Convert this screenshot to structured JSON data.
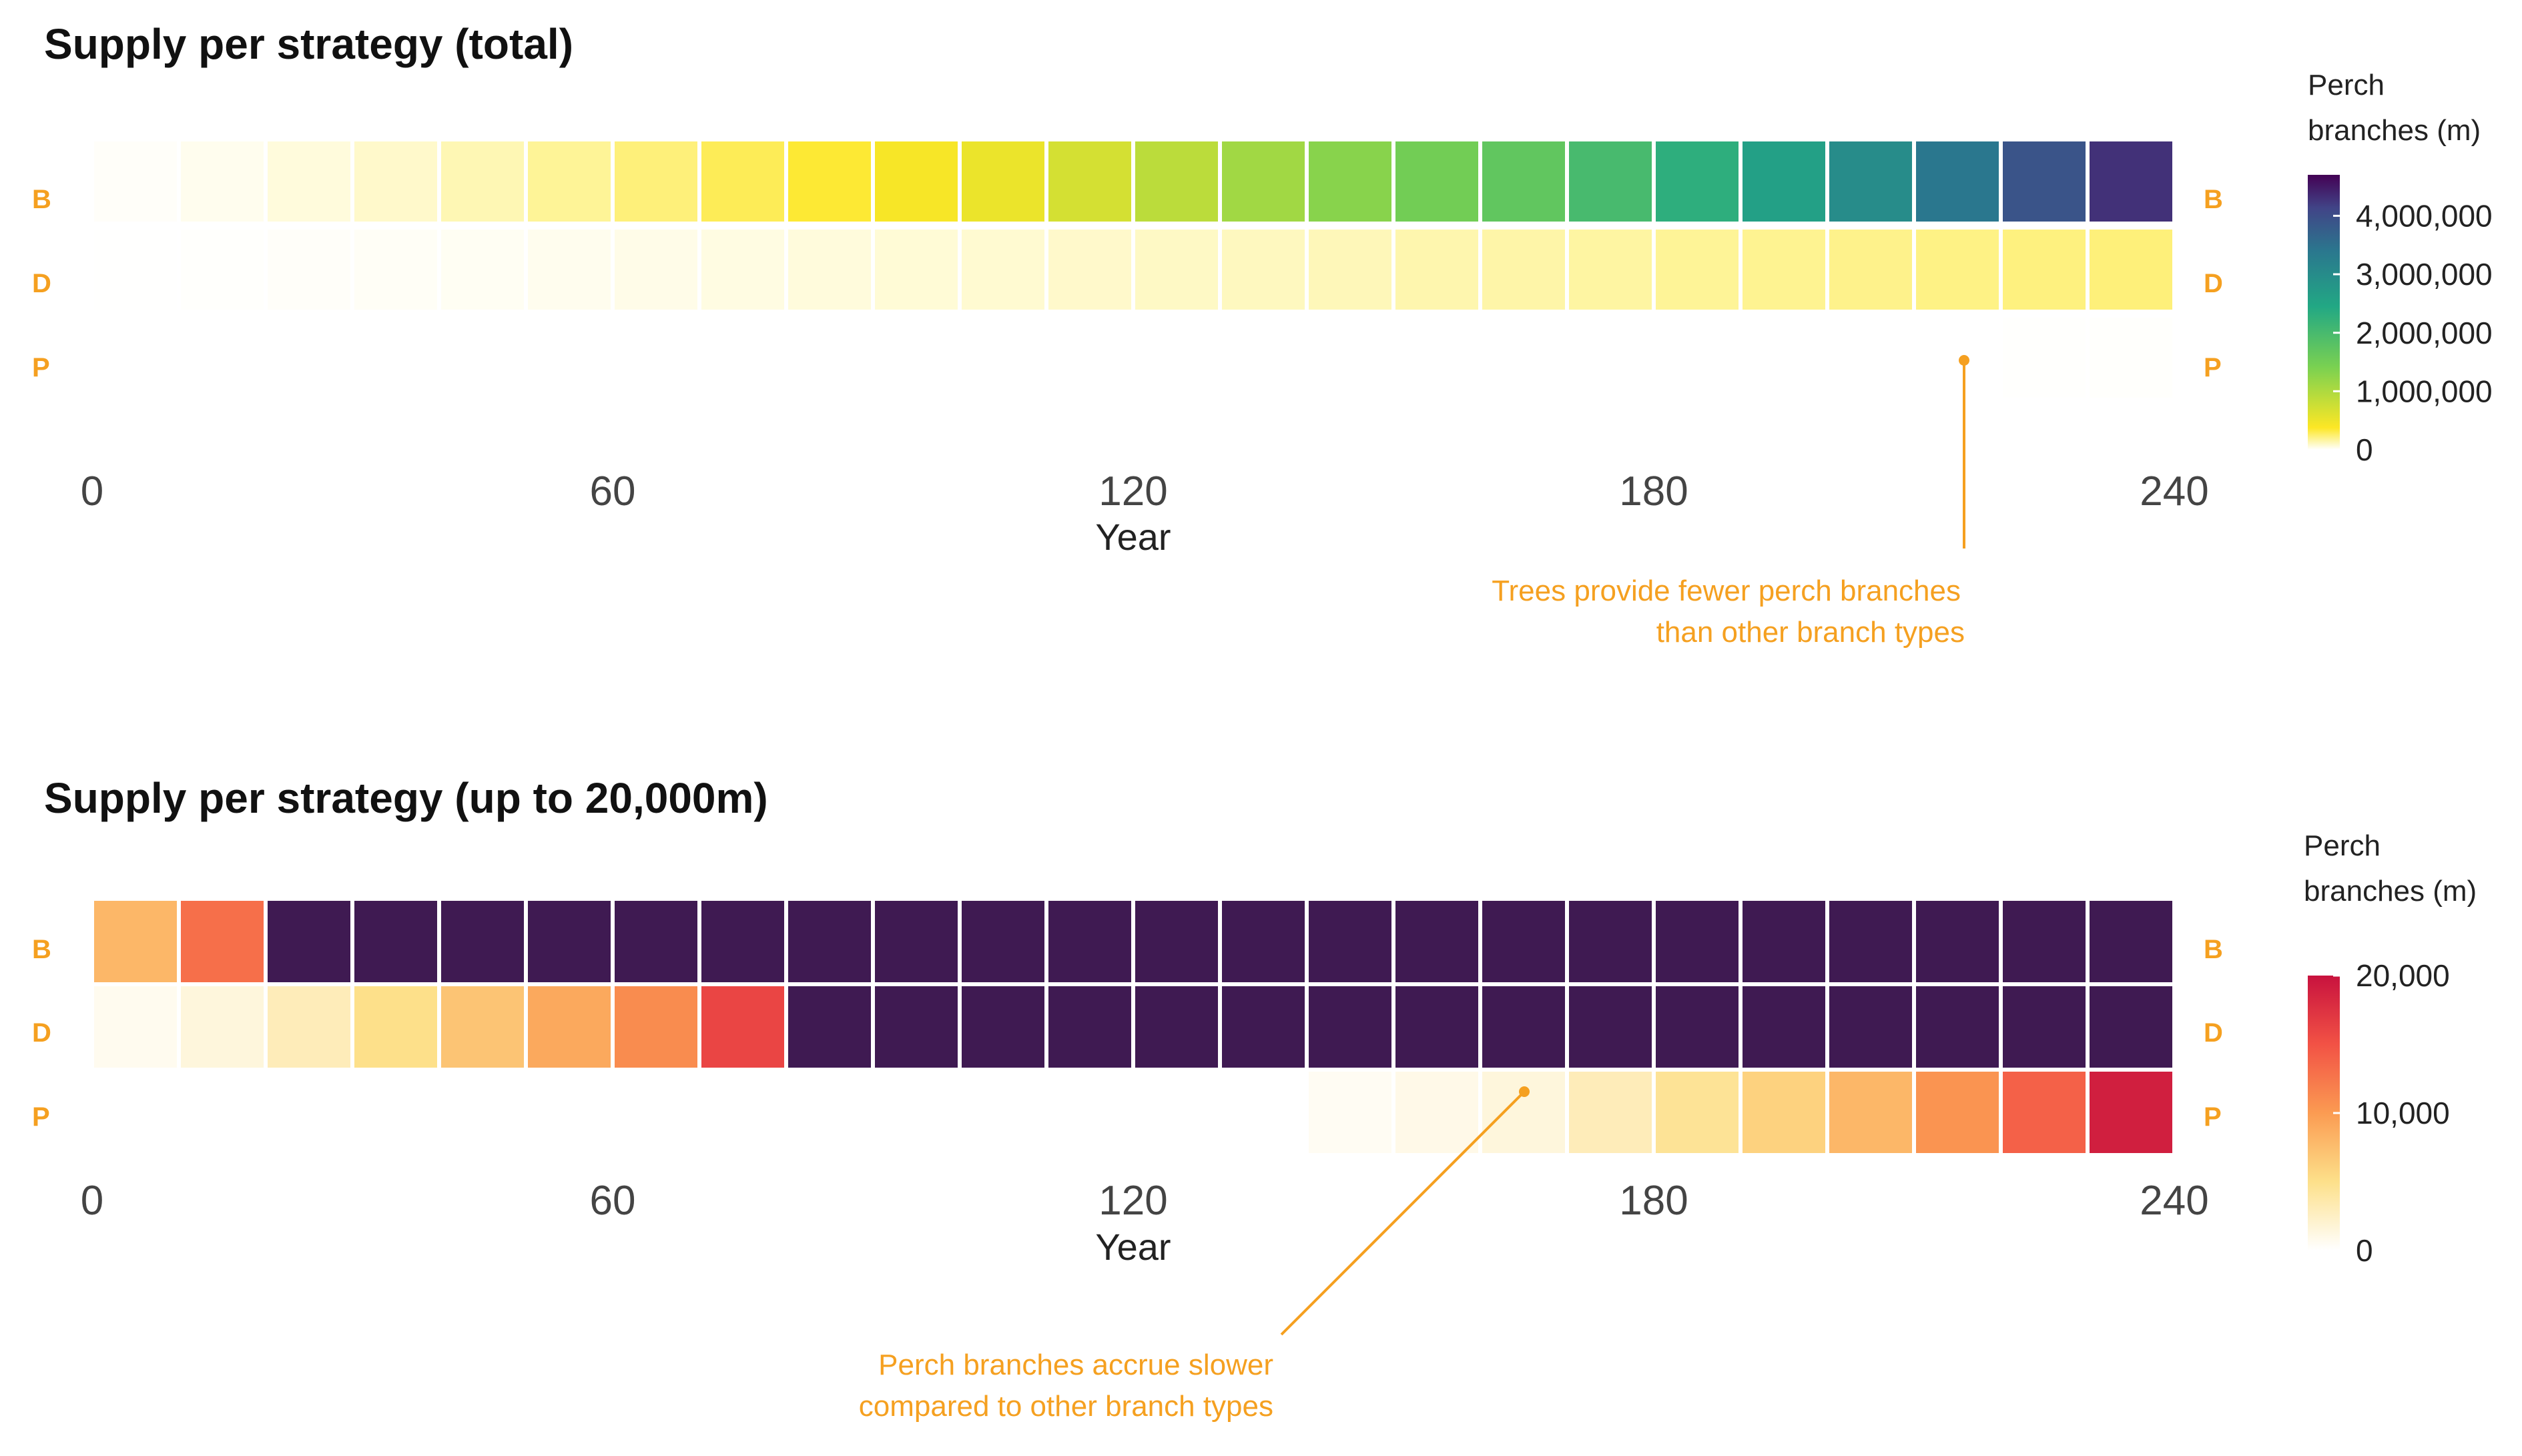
{
  "colors": {
    "annotation": "#f5a020",
    "row_label": "#f5a020",
    "title": "#111111",
    "tick": "#444444"
  },
  "chart_data": [
    {
      "type": "heatmap",
      "title": "Supply per strategy (total)",
      "xlabel": "Year",
      "xlim": [
        0,
        240
      ],
      "x_ticks": [
        0,
        60,
        120,
        180,
        240
      ],
      "x_tick_labels": [
        "0",
        "60",
        "120",
        "180",
        "240"
      ],
      "rows": [
        "B",
        "D",
        "P"
      ],
      "cell_years": [
        0,
        10,
        20,
        30,
        40,
        50,
        60,
        70,
        80,
        90,
        100,
        110,
        120,
        130,
        140,
        150,
        160,
        170,
        180,
        190,
        200,
        210,
        220,
        230
      ],
      "cell_width_years": 10,
      "values": {
        "B": [
          10000,
          30000,
          60000,
          90000,
          130000,
          180000,
          230000,
          290000,
          350000,
          420000,
          520000,
          700000,
          900000,
          1100000,
          1300000,
          1500000,
          1700000,
          2000000,
          2300000,
          2600000,
          3000000,
          3400000,
          3900000,
          4300000
        ],
        "D": [
          2000,
          5000,
          10000,
          15000,
          20000,
          30000,
          40000,
          50000,
          60000,
          70000,
          80000,
          90000,
          100000,
          110000,
          120000,
          140000,
          150000,
          160000,
          180000,
          190000,
          200000,
          210000,
          220000,
          230000
        ],
        "P": [
          0,
          0,
          0,
          0,
          0,
          0,
          0,
          0,
          0,
          0,
          0,
          0,
          0,
          0,
          0,
          0,
          0,
          0,
          0,
          0,
          0,
          0,
          3000,
          6000
        ]
      },
      "colorscale": "viridis",
      "color_range": [
        0,
        4700000
      ],
      "legend": {
        "title_lines": [
          "Perch",
          "branches (m)"
        ],
        "ticks": [
          0,
          1000000,
          2000000,
          3000000,
          4000000
        ],
        "tick_labels": [
          "0",
          "1,000,000",
          "2,000,000",
          "3,000,000",
          "4,000,000"
        ]
      },
      "annotation": {
        "lines": [
          "Trees provide fewer perch branches",
          "than other branch types"
        ],
        "point_year": 216
      }
    },
    {
      "type": "heatmap",
      "title": "Supply per strategy (up to 20,000m)",
      "xlabel": "Year",
      "xlim": [
        0,
        240
      ],
      "x_ticks": [
        0,
        60,
        120,
        180,
        240
      ],
      "x_tick_labels": [
        "0",
        "60",
        "120",
        "180",
        "240"
      ],
      "rows": [
        "B",
        "D",
        "P"
      ],
      "cell_years": [
        0,
        10,
        20,
        30,
        40,
        50,
        60,
        70,
        80,
        90,
        100,
        110,
        120,
        130,
        140,
        150,
        160,
        170,
        180,
        190,
        200,
        210,
        220,
        230
      ],
      "cell_width_years": 10,
      "values": {
        "B": [
          8000,
          13000,
          25000,
          25000,
          25000,
          25000,
          25000,
          25000,
          25000,
          25000,
          25000,
          25000,
          25000,
          25000,
          25000,
          25000,
          25000,
          25000,
          25000,
          25000,
          25000,
          25000,
          25000,
          25000
        ],
        "D": [
          700,
          1500,
          3000,
          5000,
          7000,
          9000,
          11000,
          16000,
          25000,
          25000,
          25000,
          25000,
          25000,
          25000,
          25000,
          25000,
          25000,
          25000,
          25000,
          25000,
          25000,
          25000,
          25000,
          25000
        ],
        "P": [
          0,
          0,
          0,
          0,
          0,
          0,
          0,
          0,
          0,
          0,
          0,
          0,
          0,
          0,
          500,
          1000,
          1500,
          3000,
          4500,
          6000,
          8000,
          10500,
          14000,
          19000
        ]
      },
      "colorscale": "white-yellow-orange-red (over range: purple)",
      "over_color": "#3f1a52",
      "color_range": [
        0,
        20000
      ],
      "legend": {
        "title_lines": [
          "Perch",
          "branches (m)"
        ],
        "ticks": [
          0,
          10000,
          20000
        ],
        "tick_labels": [
          "0",
          "10,000",
          "20,000"
        ]
      },
      "annotation": {
        "lines": [
          "Perch branches accrue slower",
          "compared to other branch types"
        ],
        "point_year": 165
      }
    }
  ]
}
